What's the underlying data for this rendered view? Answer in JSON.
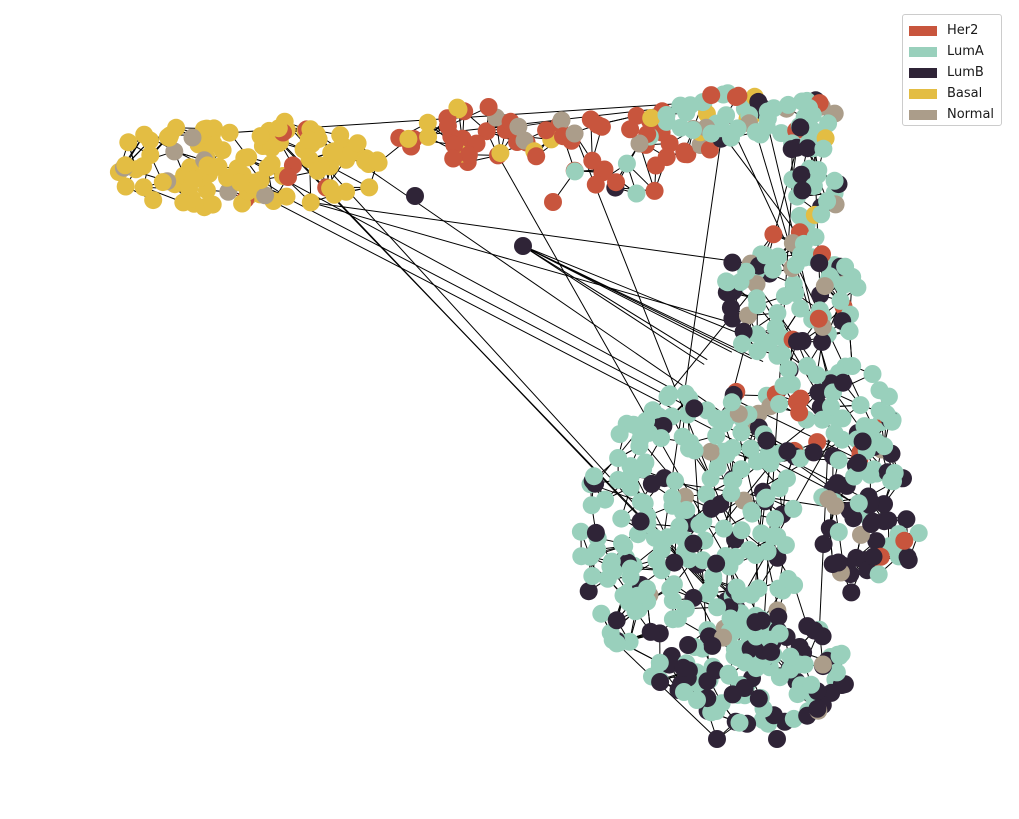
{
  "legend": {
    "items": [
      {
        "label": "Her2",
        "color": "#c8553d"
      },
      {
        "label": "LumA",
        "color": "#99d0bc"
      },
      {
        "label": "LumB",
        "color": "#2f2437"
      },
      {
        "label": "Basal",
        "color": "#e3bd43"
      },
      {
        "label": "Normal",
        "color": "#ab9d8a"
      }
    ]
  },
  "graph": {
    "node_radius": 9,
    "edge_color": "#000000"
  }
}
